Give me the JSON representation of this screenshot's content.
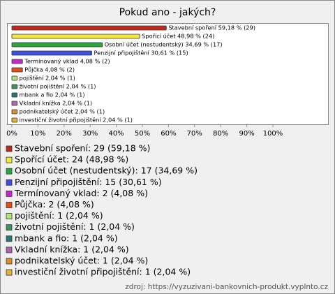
{
  "chart_data": {
    "type": "hbar",
    "title": "Pokud ano - jakých?",
    "categories": [
      "Stavební spoření",
      "Spořící účet",
      "Osobní účet (nestudentský)",
      "Penzijní připojištění",
      "Termínovaný vklad",
      "Půjčka",
      "pojištění",
      "životní pojištění",
      "mbank a fio",
      "Vkladní knížka",
      "podnikatelský účet",
      "investiční životní připojištění"
    ],
    "values": [
      59.18,
      48.98,
      34.69,
      30.61,
      4.08,
      4.08,
      2.04,
      2.04,
      2.04,
      2.04,
      2.04,
      2.04
    ],
    "value_labels": [
      "Stavební spoření 59,18 % (29)",
      "Spořící účet 48,98 % (24)",
      "Osobní účet (nestudentský) 34,69 % (17)",
      "Penzijní připojištění 30,61 % (15)",
      "Termínovaný vklad 4,08 % (2)",
      "Půjčka 4,08 % (2)",
      "pojištění 2,04 % (1)",
      "životní pojištění 2,04 % (1)",
      "mbank a fio 2,04 % (1)",
      "Vkladní knížka 2,04 % (1)",
      "podnikatelský účet 2,04 % (1)",
      "investiční životní připojištění 2,04 % (1)"
    ],
    "legend_labels": [
      "Stavební spoření: 29 (59,18 %)",
      "Spořící účet: 24 (48,98 %)",
      "Osobní účet (nestudentský): 17 (34,69 %)",
      "Penzijní připojištění: 15 (30,61 %)",
      "Termínovaný vklad: 2 (4,08 %)",
      "Půjčka: 2 (4,08 %)",
      "pojištění: 1 (2,04 %)",
      "životní pojištění: 1 (2,04 %)",
      "mbank a fio: 1 (2,04 %)",
      "Vkladní knížka: 1 (2,04 %)",
      "podnikatelský účet: 1 (2,04 %)",
      "investiční životní připojištění: 1 (2,04 %)"
    ],
    "colors": [
      "#c0281e",
      "#f5e83c",
      "#28a83c",
      "#3c50dc",
      "#c828c8",
      "#e0501e",
      "#b4e678",
      "#3c9664",
      "#287878",
      "#b464b4",
      "#e08c28",
      "#e6b428"
    ],
    "xlim": [
      0,
      100
    ],
    "xticks": [
      {
        "value": 0,
        "label": "0%"
      },
      {
        "value": 10,
        "label": "10%"
      },
      {
        "value": 20,
        "label": "20%"
      },
      {
        "value": 30,
        "label": "30%"
      },
      {
        "value": 40,
        "label": "40%"
      },
      {
        "value": 50,
        "label": "50%"
      },
      {
        "value": 60,
        "label": "60%"
      },
      {
        "value": 70,
        "label": "70%"
      },
      {
        "value": 80,
        "label": "80%"
      },
      {
        "value": 90,
        "label": "90%"
      },
      {
        "value": 100,
        "label": "100%"
      }
    ],
    "source": "zdroj: https://vyzuzivani-bankovnich-produkt.vyplnto.cz"
  }
}
